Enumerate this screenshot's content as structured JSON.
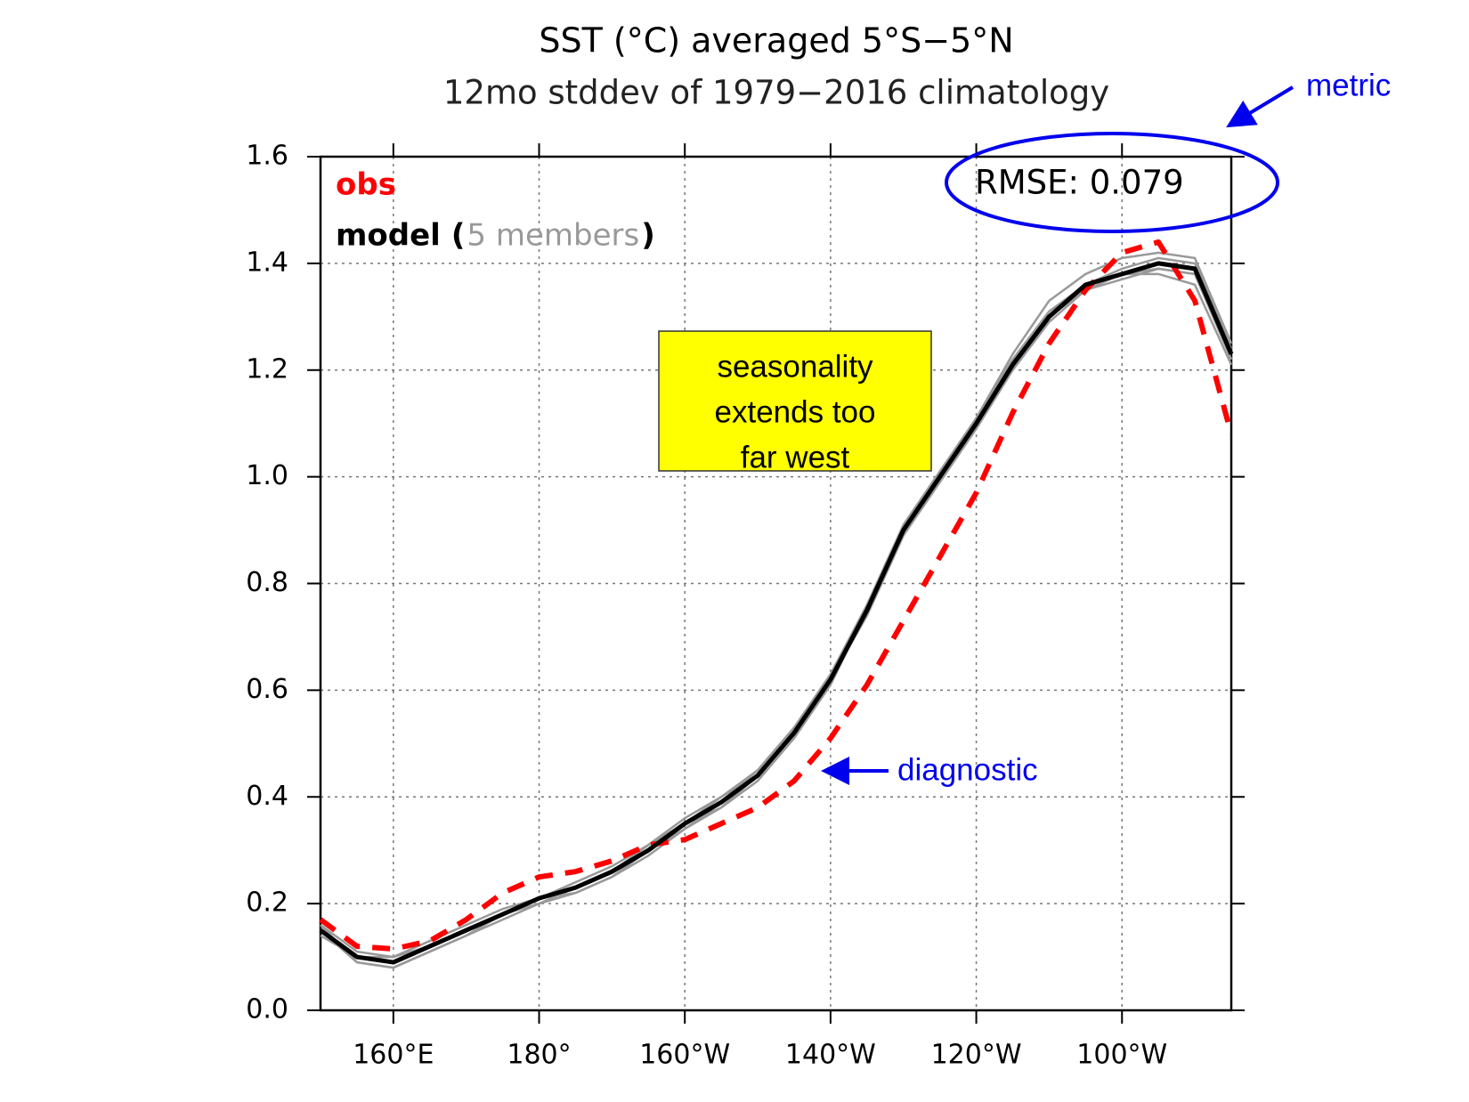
{
  "chart_data": {
    "type": "line",
    "title": "SST (°C) averaged 5°S−5°N",
    "subtitle": "12mo stddev of 1979−2016 climatology",
    "x": [
      150,
      155,
      160,
      165,
      170,
      175,
      180,
      185,
      190,
      195,
      200,
      205,
      210,
      215,
      220,
      225,
      230,
      235,
      240,
      245,
      250,
      255,
      260,
      265,
      270,
      275
    ],
    "series": [
      {
        "name": "obs",
        "color": "#ff0000",
        "dashed": true,
        "values": [
          0.17,
          0.12,
          0.115,
          0.13,
          0.17,
          0.22,
          0.25,
          0.26,
          0.28,
          0.31,
          0.32,
          0.35,
          0.38,
          0.43,
          0.51,
          0.61,
          0.73,
          0.85,
          0.97,
          1.12,
          1.25,
          1.35,
          1.42,
          1.44,
          1.33,
          1.08
        ]
      },
      {
        "name": "model",
        "color": "#000000",
        "dashed": false,
        "values": [
          0.15,
          0.1,
          0.09,
          0.12,
          0.15,
          0.18,
          0.21,
          0.23,
          0.26,
          0.3,
          0.35,
          0.39,
          0.44,
          0.52,
          0.62,
          0.75,
          0.9,
          1.0,
          1.1,
          1.21,
          1.3,
          1.36,
          1.38,
          1.4,
          1.39,
          1.23
        ]
      }
    ],
    "members": {
      "label": "5 members",
      "color": "#999999",
      "values": [
        [
          0.16,
          0.09,
          0.08,
          0.11,
          0.14,
          0.18,
          0.21,
          0.22,
          0.25,
          0.29,
          0.34,
          0.39,
          0.45,
          0.53,
          0.63,
          0.76,
          0.91,
          1.01,
          1.11,
          1.23,
          1.33,
          1.38,
          1.41,
          1.42,
          1.41,
          1.25
        ],
        [
          0.15,
          0.1,
          0.09,
          0.12,
          0.15,
          0.18,
          0.2,
          0.23,
          0.26,
          0.31,
          0.36,
          0.4,
          0.44,
          0.52,
          0.62,
          0.74,
          0.89,
          0.99,
          1.09,
          1.2,
          1.29,
          1.35,
          1.37,
          1.39,
          1.38,
          1.22
        ],
        [
          0.14,
          0.1,
          0.1,
          0.13,
          0.16,
          0.19,
          0.21,
          0.24,
          0.27,
          0.31,
          0.35,
          0.38,
          0.43,
          0.51,
          0.61,
          0.75,
          0.9,
          1.0,
          1.1,
          1.22,
          1.31,
          1.36,
          1.39,
          1.41,
          1.4,
          1.24
        ],
        [
          0.15,
          0.09,
          0.08,
          0.11,
          0.14,
          0.17,
          0.2,
          0.22,
          0.25,
          0.3,
          0.34,
          0.38,
          0.44,
          0.52,
          0.62,
          0.75,
          0.9,
          1.01,
          1.1,
          1.21,
          1.3,
          1.35,
          1.38,
          1.39,
          1.38,
          1.22
        ],
        [
          0.16,
          0.11,
          0.1,
          0.12,
          0.15,
          0.18,
          0.21,
          0.23,
          0.26,
          0.3,
          0.35,
          0.4,
          0.45,
          0.53,
          0.62,
          0.74,
          0.89,
          1.0,
          1.11,
          1.22,
          1.3,
          1.36,
          1.38,
          1.38,
          1.36,
          1.21
        ]
      ]
    },
    "legend_brackets": [
      "(",
      ")"
    ],
    "xlim": [
      150,
      275
    ],
    "xticks": [
      {
        "value": 160,
        "label": "160°E"
      },
      {
        "value": 180,
        "label": "180°"
      },
      {
        "value": 200,
        "label": "160°W"
      },
      {
        "value": 220,
        "label": "140°W"
      },
      {
        "value": 240,
        "label": "120°W"
      },
      {
        "value": 260,
        "label": "100°W"
      }
    ],
    "ylim": [
      0,
      1.6
    ],
    "yticks": [
      {
        "value": 0,
        "label": "0.0"
      },
      {
        "value": 0.2,
        "label": "0.2"
      },
      {
        "value": 0.4,
        "label": "0.4"
      },
      {
        "value": 0.6,
        "label": "0.6"
      },
      {
        "value": 0.8,
        "label": "0.8"
      },
      {
        "value": 1.0,
        "label": "1.0"
      },
      {
        "value": 1.2,
        "label": "1.2"
      },
      {
        "value": 1.4,
        "label": "1.4"
      },
      {
        "value": 1.6,
        "label": "1.6"
      }
    ],
    "grid": true,
    "annotations": {
      "rmse": "RMSE: 0.079",
      "metric": "metric",
      "diagnostic": "diagnostic",
      "box_lines": [
        "seasonality",
        "extends too",
        "far west"
      ]
    }
  }
}
